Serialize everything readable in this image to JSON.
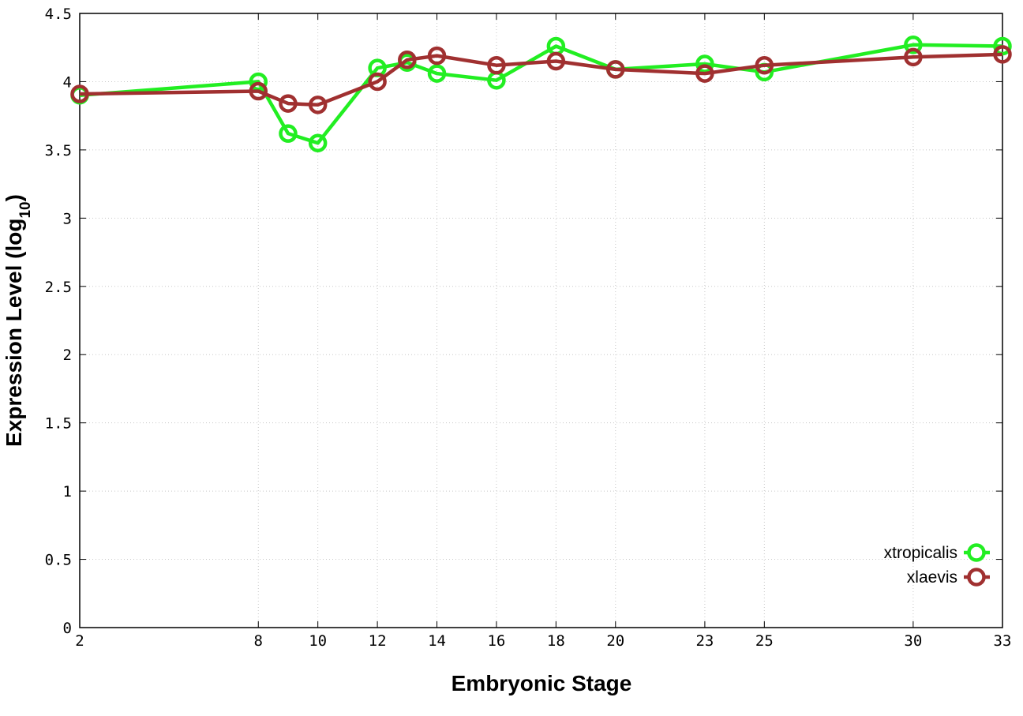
{
  "chart_data": {
    "type": "line",
    "title": "",
    "xlabel": "Embryonic Stage",
    "ylabel_main": "Expression Level (log",
    "ylabel_sub": "10",
    "ylabel_close": ")",
    "x": [
      2,
      8,
      9,
      10,
      12,
      13,
      14,
      16,
      18,
      20,
      23,
      25,
      30,
      33
    ],
    "xticks": [
      2,
      8,
      10,
      12,
      14,
      16,
      18,
      20,
      23,
      25,
      30,
      33
    ],
    "xtick_labels": [
      "2",
      "8",
      "10",
      "12",
      "14",
      "16",
      "18",
      "20",
      "23",
      "25",
      "30",
      "33"
    ],
    "xlim": [
      2,
      33
    ],
    "yticks": [
      0,
      0.5,
      1,
      1.5,
      2,
      2.5,
      3,
      3.5,
      4,
      4.5
    ],
    "ytick_labels": [
      "0",
      "0.5",
      "1",
      "1.5",
      "2",
      "2.5",
      "3",
      "3.5",
      "4",
      "4.5"
    ],
    "ylim": [
      0,
      4.5
    ],
    "grid": true,
    "legend_position": "bottom-right",
    "series": [
      {
        "name": "xtropicalis",
        "color": "#22ee22",
        "marker": "open-circle",
        "values": [
          3.9,
          4.0,
          3.62,
          3.55,
          4.1,
          4.14,
          4.06,
          4.01,
          4.26,
          4.09,
          4.13,
          4.07,
          4.27,
          4.26
        ]
      },
      {
        "name": "xlaevis",
        "color": "#a03030",
        "marker": "open-circle",
        "values": [
          3.91,
          3.93,
          3.84,
          3.83,
          4.0,
          4.16,
          4.19,
          4.12,
          4.15,
          4.09,
          4.06,
          4.12,
          4.18,
          4.2
        ]
      }
    ]
  }
}
